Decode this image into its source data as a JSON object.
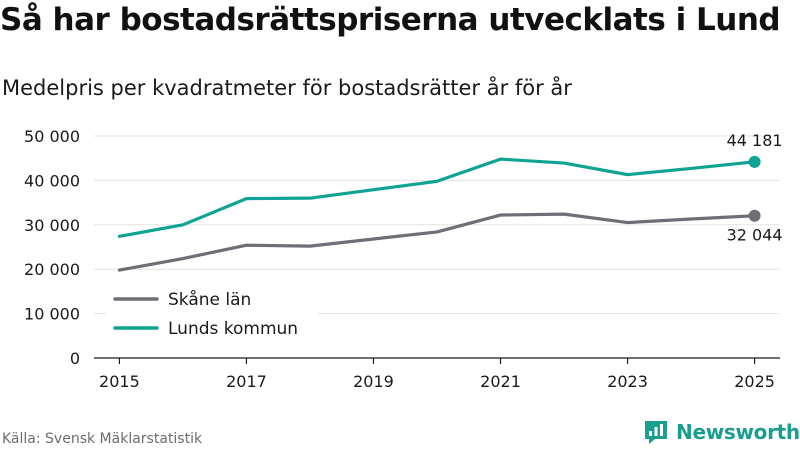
{
  "header": {
    "title": "Så har bostadsrättspriserna utvecklats i Lund",
    "subtitle": "Medelpris per kvadratmeter för bostadsrätter år för år"
  },
  "footer": {
    "source": "Källa: Svensk Mäklarstatistik",
    "brand": "Newsworthy"
  },
  "colors": {
    "lund": "#0fa393",
    "skane": "#6e6e76",
    "grid": "#e3e3e3",
    "axis": "#1a1a1a",
    "brand": "#1a9e8f"
  },
  "chart_data": {
    "type": "line",
    "title": "Så har bostadsrättspriserna utvecklats i Lund",
    "subtitle": "Medelpris per kvadratmeter för bostadsrätter år för år",
    "xlabel": "",
    "ylabel": "",
    "x": [
      2015,
      2016,
      2017,
      2018,
      2019,
      2020,
      2021,
      2022,
      2023,
      2024,
      2025
    ],
    "xlim": [
      2014.6,
      2025.4
    ],
    "ylim": [
      0,
      50000
    ],
    "xticks": [
      2015,
      2017,
      2019,
      2021,
      2023,
      2025
    ],
    "xtick_labels": [
      "2015",
      "2017",
      "2019",
      "2021",
      "2023",
      "2025"
    ],
    "yticks": [
      0,
      10000,
      20000,
      30000,
      40000,
      50000
    ],
    "ytick_labels": [
      "0",
      "10 000",
      "20 000",
      "30 000",
      "40 000",
      "50 000"
    ],
    "grid": true,
    "legend_position": "lower-left",
    "series": [
      {
        "name": "Skåne län",
        "color": "#6e6e76",
        "values": [
          19800,
          22400,
          25400,
          25200,
          26800,
          28400,
          32200,
          32400,
          30500,
          31300,
          32044
        ],
        "end_label": "32 044",
        "end_label_position": "below"
      },
      {
        "name": "Lunds kommun",
        "color": "#0fa393",
        "values": [
          27400,
          30000,
          35900,
          36000,
          37900,
          39800,
          44800,
          43900,
          41300,
          42700,
          44181
        ],
        "end_label": "44 181",
        "end_label_position": "above"
      }
    ]
  }
}
